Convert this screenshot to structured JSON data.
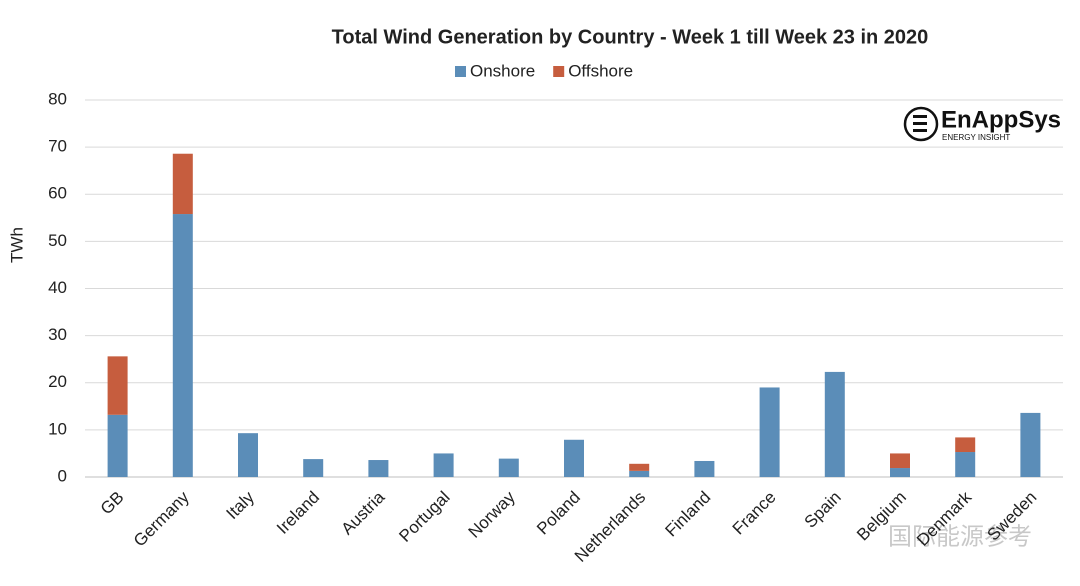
{
  "chart_data": {
    "type": "stacked_bar",
    "title": "Total Wind Generation by Country - Week 1 till Week 23 in 2020",
    "y_label": "TWh",
    "categories": [
      "GB",
      "Germany",
      "Italy",
      "Ireland",
      "Austria",
      "Portugal",
      "Norway",
      "Poland",
      "Netherlands",
      "Finland",
      "France",
      "Spain",
      "Belgium",
      "Denmark",
      "Sweden"
    ],
    "series": [
      {
        "name": "Onshore",
        "color": "#5b8db8",
        "values": [
          13.2,
          55.8,
          9.3,
          3.8,
          3.6,
          5.0,
          3.9,
          7.9,
          1.3,
          3.4,
          19.0,
          22.3,
          1.9,
          5.3,
          13.6
        ]
      },
      {
        "name": "Offshore",
        "color": "#c65d3e",
        "values": [
          12.4,
          12.8,
          0,
          0,
          0,
          0,
          0,
          0,
          1.5,
          0,
          0,
          0,
          3.1,
          3.1,
          0
        ]
      }
    ],
    "ylim": [
      0,
      80
    ],
    "yticks": [
      0,
      10,
      20,
      30,
      40,
      50,
      60,
      70,
      80
    ],
    "grid": true,
    "legend": "top"
  },
  "logo": {
    "name": "EnAppSys",
    "tagline": "ENERGY INSIGHT"
  },
  "watermark": "国际能源参考"
}
